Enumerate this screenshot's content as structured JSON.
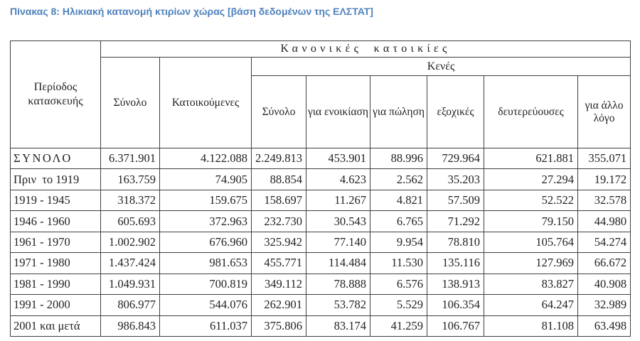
{
  "caption": "Πίνακας 8: Ηλικιακή κατανομή κτιρίων χώρας [βάση δεδομένων της ΕΛΣΤΑΤ]",
  "colors": {
    "caption_blue": "#4f81bd",
    "table_border": "#3f3f3f",
    "text": "#222222"
  },
  "table": {
    "header": {
      "period_label": "Περίοδος κατασκευής",
      "group_label": "Κανονικές κατοικίες",
      "total_label": "Σύνολο",
      "occupied_label": "Κατοικούμενες",
      "vacant_label": "Κενές",
      "vacant_columns": [
        "Σύνολο",
        "για ενοικίαση",
        "για πώληση",
        "εξοχικές",
        "δευτερεύουσες",
        "για άλλο λόγο"
      ]
    },
    "rows": [
      {
        "period": "ΣΥΝΟΛΟ",
        "values": [
          "6.371.901",
          "4.122.088",
          "2.249.813",
          "453.901",
          "88.996",
          "729.964",
          "621.881",
          "355.071"
        ]
      },
      {
        "period": "Πριν  το 1919",
        "values": [
          "163.759",
          "74.905",
          "88.854",
          "4.623",
          "2.562",
          "35.203",
          "27.294",
          "19.172"
        ]
      },
      {
        "period": "1919 - 1945",
        "values": [
          "318.372",
          "159.675",
          "158.697",
          "11.267",
          "4.821",
          "57.509",
          "52.522",
          "32.578"
        ]
      },
      {
        "period": "1946 - 1960",
        "values": [
          "605.693",
          "372.963",
          "232.730",
          "30.543",
          "6.765",
          "71.292",
          "79.150",
          "44.980"
        ]
      },
      {
        "period": "1961 - 1970",
        "values": [
          "1.002.902",
          "676.960",
          "325.942",
          "77.140",
          "9.954",
          "78.810",
          "105.764",
          "54.274"
        ]
      },
      {
        "period": "1971 - 1980",
        "values": [
          "1.437.424",
          "981.653",
          "455.771",
          "114.484",
          "11.530",
          "135.116",
          "127.969",
          "66.672"
        ]
      },
      {
        "period": "1981 - 1990",
        "values": [
          "1.049.931",
          "700.819",
          "349.112",
          "78.888",
          "6.576",
          "138.913",
          "83.827",
          "40.908"
        ]
      },
      {
        "period": "1991 - 2000",
        "values": [
          "806.977",
          "544.076",
          "262.901",
          "53.782",
          "5.529",
          "106.354",
          "64.247",
          "32.989"
        ]
      },
      {
        "period": "2001 και μετά",
        "values": [
          "986.843",
          "611.037",
          "375.806",
          "83.174",
          "41.259",
          "106.767",
          "81.108",
          "63.498"
        ]
      }
    ]
  }
}
